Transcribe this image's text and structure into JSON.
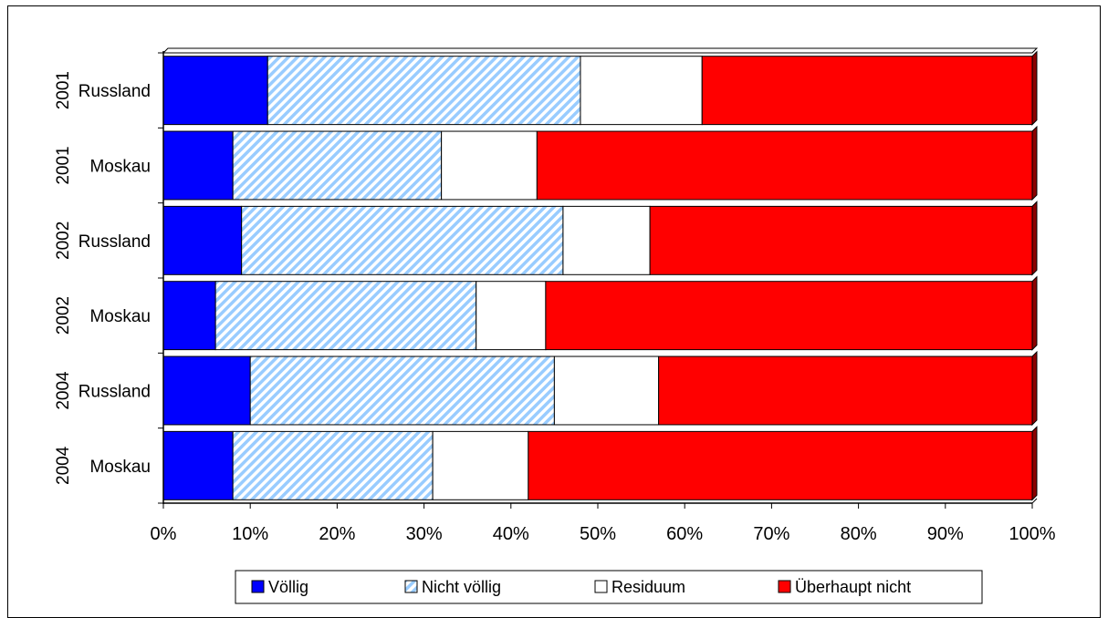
{
  "chart_data": {
    "type": "bar",
    "orientation": "horizontal",
    "stacked": "percent",
    "categories": [
      {
        "year": "2001",
        "region": "Russland"
      },
      {
        "year": "2001",
        "region": "Moskau"
      },
      {
        "year": "2002",
        "region": "Russland"
      },
      {
        "year": "2002",
        "region": "Moskau"
      },
      {
        "year": "2004",
        "region": "Russland"
      },
      {
        "year": "2004",
        "region": "Moskau"
      }
    ],
    "series": [
      {
        "name": "Völlig",
        "color": "#0000ff",
        "pattern": "solid",
        "values": [
          12,
          8,
          9,
          6,
          10,
          8
        ]
      },
      {
        "name": "Nicht völlig",
        "color": "#99ccff",
        "pattern": "diagonal-hatch",
        "values": [
          36,
          24,
          37,
          30,
          35,
          23
        ]
      },
      {
        "name": "Residuum",
        "color": "#ffffff",
        "pattern": "solid",
        "values": [
          14,
          11,
          10,
          8,
          12,
          11
        ]
      },
      {
        "name": "Überhaupt nicht",
        "color": "#ff0000",
        "pattern": "solid",
        "values": [
          38,
          57,
          44,
          56,
          43,
          58
        ]
      }
    ],
    "x_ticks": [
      "0%",
      "10%",
      "20%",
      "30%",
      "40%",
      "50%",
      "60%",
      "70%",
      "80%",
      "90%",
      "100%"
    ],
    "xlim": [
      0,
      100
    ],
    "grid": false,
    "legend_position": "bottom",
    "title": "",
    "xlabel": "",
    "ylabel": ""
  }
}
